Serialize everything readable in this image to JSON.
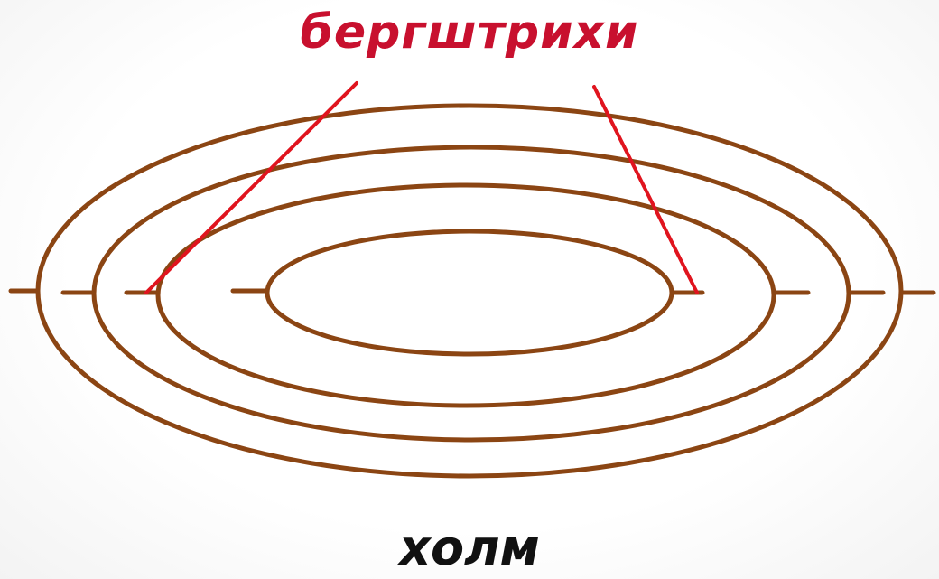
{
  "title": "бергштрихи",
  "caption": "холм",
  "colors": {
    "contour": "#8b4513",
    "pointer": "#e0141e",
    "title": "#c8102e",
    "caption": "#111111"
  }
}
